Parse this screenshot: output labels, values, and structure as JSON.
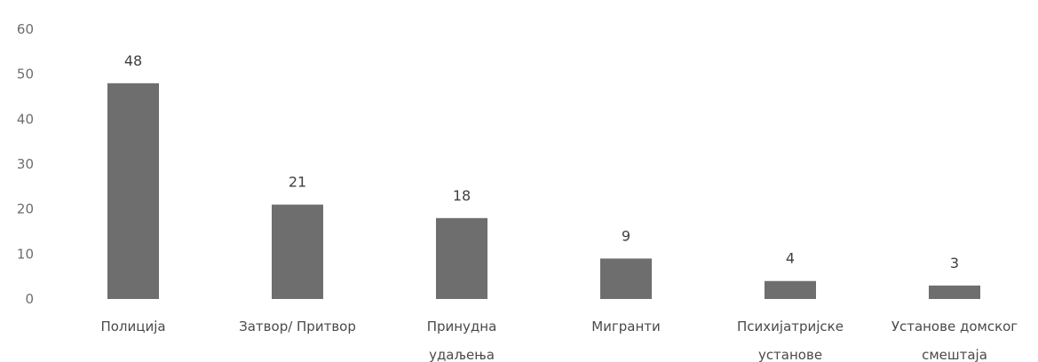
{
  "chart_data": {
    "type": "bar",
    "categories": [
      [
        "Полиција"
      ],
      [
        "Затвор/ Притвор"
      ],
      [
        "Принудна",
        "удаљења"
      ],
      [
        "Мигранти"
      ],
      [
        "Психијатријске",
        "установе"
      ],
      [
        "Установе домског",
        "смештаја"
      ]
    ],
    "values": [
      48,
      21,
      18,
      9,
      4,
      3
    ],
    "ylim": [
      0,
      60
    ],
    "yticks": [
      0,
      10,
      20,
      30,
      40,
      50,
      60
    ],
    "grid": false,
    "legend": "none",
    "bar_color": "#6e6e6e"
  }
}
